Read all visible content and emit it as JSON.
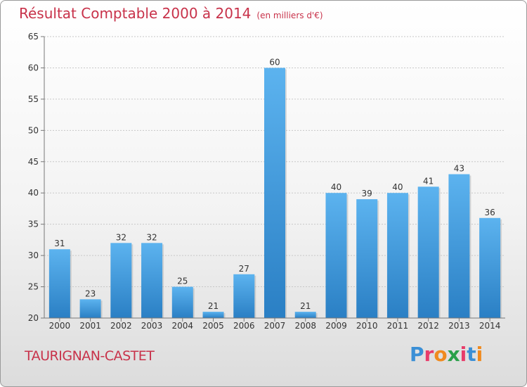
{
  "title": "Résultat Comptable 2000 à 2014",
  "subtitle": "(en milliers d'€)",
  "commune": "TAURIGNAN-CASTET",
  "logo": {
    "letters": [
      "P",
      "r",
      "o",
      "x",
      "i",
      "t",
      "i"
    ],
    "colors": [
      "#3a8fd6",
      "#e83c6a",
      "#f08a1e",
      "#2aa04a",
      "#e83c6a",
      "#3a8fd6",
      "#f08a1e"
    ]
  },
  "chart_data": {
    "type": "bar",
    "categories": [
      "2000",
      "2001",
      "2002",
      "2003",
      "2004",
      "2005",
      "2006",
      "2007",
      "2008",
      "2009",
      "2010",
      "2011",
      "2012",
      "2013",
      "2014"
    ],
    "values": [
      31,
      23,
      32,
      32,
      25,
      21,
      27,
      60,
      21,
      40,
      39,
      40,
      41,
      43,
      36
    ],
    "ylim": [
      20,
      65
    ],
    "yticks": [
      20,
      25,
      30,
      35,
      40,
      45,
      50,
      55,
      60,
      65
    ],
    "grid": true,
    "bar_color": "#3d9be0"
  }
}
